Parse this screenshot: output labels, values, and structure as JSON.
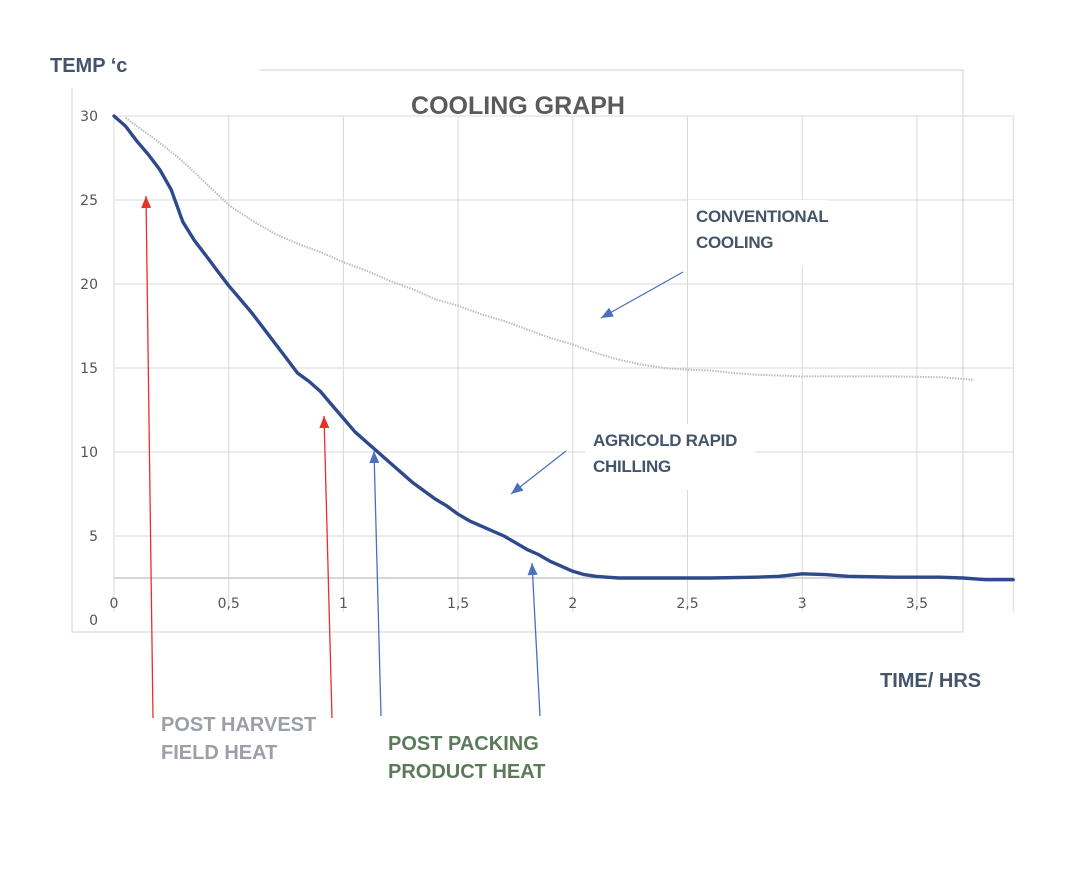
{
  "chart_data": {
    "type": "line",
    "title": "COOLING GRAPH",
    "ylabel": "TEMP ‘c",
    "xlabel": "TIME/ HRS",
    "xlim": [
      0,
      3.9
    ],
    "ylim": [
      0,
      30
    ],
    "grid": true,
    "x_ticks": [
      "0",
      "0,5",
      "1",
      "1,5",
      "2",
      "2,5",
      "3",
      "3,5"
    ],
    "y_ticks": [
      "0",
      "5",
      "10",
      "15",
      "20",
      "25",
      "30"
    ],
    "series": [
      {
        "name": "CONVENTIONAL COOLING",
        "color": "#bdbdbd",
        "x": [
          0.05,
          0.1,
          0.2,
          0.3,
          0.4,
          0.5,
          0.6,
          0.7,
          0.8,
          0.9,
          1.0,
          1.1,
          1.2,
          1.3,
          1.4,
          1.5,
          1.6,
          1.7,
          1.8,
          1.9,
          2.0,
          2.1,
          2.2,
          2.3,
          2.4,
          2.5,
          2.6,
          2.7,
          2.8,
          2.9,
          3.0,
          3.2,
          3.4,
          3.6,
          3.75
        ],
        "values": [
          29.9,
          29.4,
          28.4,
          27.3,
          26.0,
          24.7,
          23.8,
          23.0,
          22.4,
          21.9,
          21.3,
          20.8,
          20.2,
          19.7,
          19.1,
          18.7,
          18.2,
          17.8,
          17.3,
          16.8,
          16.4,
          15.9,
          15.5,
          15.2,
          15.0,
          14.9,
          14.85,
          14.7,
          14.6,
          14.55,
          14.5,
          14.5,
          14.5,
          14.45,
          14.3
        ]
      },
      {
        "name": "AGRICOLD RAPID CHILLING",
        "color": "#2e4a8c",
        "x": [
          0,
          0.05,
          0.1,
          0.15,
          0.2,
          0.25,
          0.3,
          0.35,
          0.4,
          0.45,
          0.5,
          0.55,
          0.6,
          0.65,
          0.7,
          0.75,
          0.8,
          0.85,
          0.9,
          0.95,
          1.0,
          1.05,
          1.1,
          1.15,
          1.2,
          1.25,
          1.3,
          1.35,
          1.4,
          1.45,
          1.5,
          1.55,
          1.6,
          1.65,
          1.7,
          1.75,
          1.8,
          1.85,
          1.9,
          1.95,
          2.0,
          2.05,
          2.1,
          2.15,
          2.2,
          2.4,
          2.6,
          2.8,
          2.9,
          3.0,
          3.1,
          3.2,
          3.4,
          3.6,
          3.7,
          3.8,
          3.92
        ],
        "values": [
          30.0,
          29.4,
          28.5,
          27.7,
          26.8,
          25.6,
          23.7,
          22.6,
          21.7,
          20.8,
          19.9,
          19.1,
          18.3,
          17.4,
          16.5,
          15.6,
          14.7,
          14.2,
          13.6,
          12.8,
          12.0,
          11.2,
          10.6,
          10.0,
          9.4,
          8.8,
          8.2,
          7.7,
          7.2,
          6.8,
          6.3,
          5.9,
          5.6,
          5.3,
          5.0,
          4.6,
          4.2,
          3.9,
          3.5,
          3.2,
          2.9,
          2.7,
          2.6,
          2.55,
          2.5,
          2.5,
          2.5,
          2.55,
          2.6,
          2.75,
          2.7,
          2.6,
          2.55,
          2.55,
          2.5,
          2.4,
          2.4
        ]
      }
    ],
    "annotations": [
      {
        "id": "conventional",
        "lines": [
          "CONVENTIONAL",
          "COOLING"
        ]
      },
      {
        "id": "agricold",
        "lines": [
          "AGRICOLD RAPID",
          "CHILLING"
        ]
      },
      {
        "id": "field-heat",
        "lines": [
          "POST HARVEST",
          "FIELD HEAT"
        ],
        "arrow_color": "#e8302a",
        "arrow_points_x": [
          0.15,
          0.92
        ]
      },
      {
        "id": "product-heat",
        "lines": [
          "POST PACKING",
          "PRODUCT HEAT"
        ],
        "arrow_color": "#4a6fbf",
        "arrow_points_x": [
          1.15,
          1.83
        ]
      }
    ]
  }
}
